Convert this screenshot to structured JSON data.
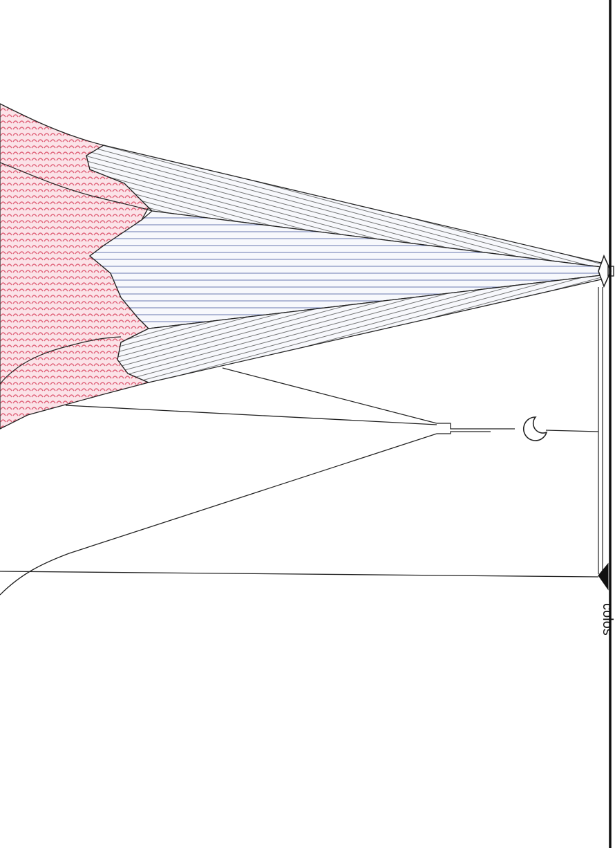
{
  "diagram": {
    "edge_text": "colos",
    "colors": {
      "outline": "#222222",
      "pink_hatch": "#e0637a",
      "pink_fill": "#fbe3e8",
      "blue_line": "#5a6aa8",
      "grey_line": "#555555",
      "fan_fill": "#f7f8fc",
      "background": "#ffffff"
    },
    "shapes": [
      {
        "name": "pink-hatched-mass",
        "fill": "pink_hatch"
      },
      {
        "name": "upper-grey-fan",
        "fill": "grey_line"
      },
      {
        "name": "middle-blue-fan",
        "fill": "blue_line"
      },
      {
        "name": "lower-grey-fan",
        "fill": "grey_line"
      },
      {
        "name": "lens-apex",
        "fill": "outline"
      },
      {
        "name": "small-circle",
        "fill": "outline"
      },
      {
        "name": "triangle-marker",
        "fill": "outline"
      },
      {
        "name": "right-frame",
        "fill": "outline"
      }
    ]
  }
}
